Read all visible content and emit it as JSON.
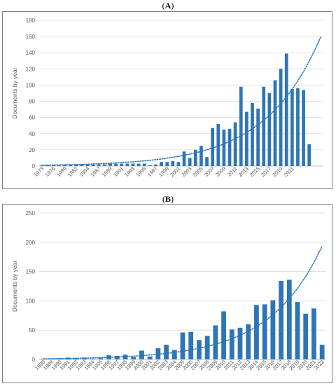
{
  "panels": [
    {
      "label_open": "(",
      "label_letter": "A",
      "label_close": ")"
    },
    {
      "label_open": "(",
      "label_letter": "B",
      "label_close": ")"
    }
  ],
  "colors": {
    "bar": "#2e75b6",
    "trend": "#2e75b6",
    "grid": "#d9d9d9",
    "axis": "#bfbfbf",
    "text": "#595959"
  },
  "chart_data": [
    {
      "type": "bar",
      "title": "",
      "ylabel": "Documents by year",
      "xlabel": "",
      "ylim": [
        0,
        180
      ],
      "yticks": [
        0,
        20,
        40,
        60,
        80,
        100,
        120,
        140,
        160,
        180
      ],
      "grid": true,
      "trendline": "exponential (dotted)",
      "categories": [
        "1973",
        "1974",
        "1975",
        "1976",
        "1977",
        "1978",
        "1979",
        "1980",
        "1981",
        "1982",
        "1983",
        "1984",
        "1985",
        "1986",
        "1987",
        "1988",
        "1989",
        "1990",
        "1991",
        "1992",
        "1993",
        "1994",
        "1995",
        "1996",
        "1997",
        "1998",
        "1999",
        "2000",
        "2001",
        "2002",
        "2003",
        "2004",
        "2005",
        "2006",
        "2007",
        "2008",
        "2009",
        "2010",
        "2011",
        "2012",
        "2013",
        "2014",
        "2015",
        "2016",
        "2017",
        "2018",
        "2019",
        "2020",
        "2021",
        "2022"
      ],
      "tick_labels": [
        "1973",
        "1976",
        "1980",
        "1982",
        "1984",
        "1987",
        "1989",
        "1991",
        "1993",
        "1995",
        "1997",
        "1999",
        "2001",
        "2003",
        "2005",
        "2007",
        "2009",
        "2011",
        "2013",
        "2015",
        "2017",
        "2019",
        "2021"
      ],
      "label_every": 2,
      "values": [
        1,
        1,
        1,
        1,
        2,
        2,
        2,
        2,
        2,
        2,
        2,
        2,
        3,
        3,
        3,
        3,
        3,
        3,
        3,
        1,
        2,
        5,
        5,
        6,
        5,
        18,
        10,
        20,
        25,
        11,
        47,
        52,
        45,
        46,
        54,
        98,
        67,
        78,
        71,
        98,
        90,
        106,
        120,
        139,
        95,
        96,
        94,
        27,
        0,
        0
      ],
      "trend": {
        "start": 1,
        "end": 159
      }
    },
    {
      "type": "bar",
      "title": "",
      "ylabel": "Documents by year",
      "xlabel": "",
      "ylim": [
        0,
        250
      ],
      "yticks": [
        0,
        50,
        100,
        150,
        200,
        250
      ],
      "grid": true,
      "trendline": "exponential (dotted)",
      "categories": [
        "1988",
        "1989",
        "1990",
        "1991",
        "1992",
        "1993",
        "1994",
        "1995",
        "1996",
        "1997",
        "1998",
        "1999",
        "2000",
        "2001",
        "2002",
        "2003",
        "2004",
        "2005",
        "2006",
        "2007",
        "2008",
        "2009",
        "2010",
        "2011",
        "2012",
        "2013",
        "2014",
        "2015",
        "2016",
        "2017",
        "2018",
        "2019",
        "2020",
        "2021",
        "2022"
      ],
      "tick_labels": [
        "1988",
        "1989",
        "1990",
        "1991",
        "1992",
        "1993",
        "1994",
        "1995",
        "1996",
        "1997",
        "1998",
        "1999",
        "2000",
        "2001",
        "2002",
        "2003",
        "2004",
        "2005",
        "2006",
        "2007",
        "2008",
        "2009",
        "2010",
        "2011",
        "2012",
        "2013",
        "2014",
        "2015",
        "2016",
        "2017",
        "2018",
        "2019",
        "2020",
        "2021",
        "2022"
      ],
      "label_every": 1,
      "values": [
        1,
        1,
        2,
        3,
        2,
        3,
        1,
        2,
        7,
        6,
        8,
        4,
        15,
        5,
        19,
        25,
        16,
        46,
        47,
        33,
        40,
        58,
        82,
        51,
        54,
        60,
        93,
        94,
        101,
        134,
        136,
        98,
        78,
        87,
        25
      ],
      "trend": {
        "start": 1,
        "end": 193
      }
    }
  ]
}
